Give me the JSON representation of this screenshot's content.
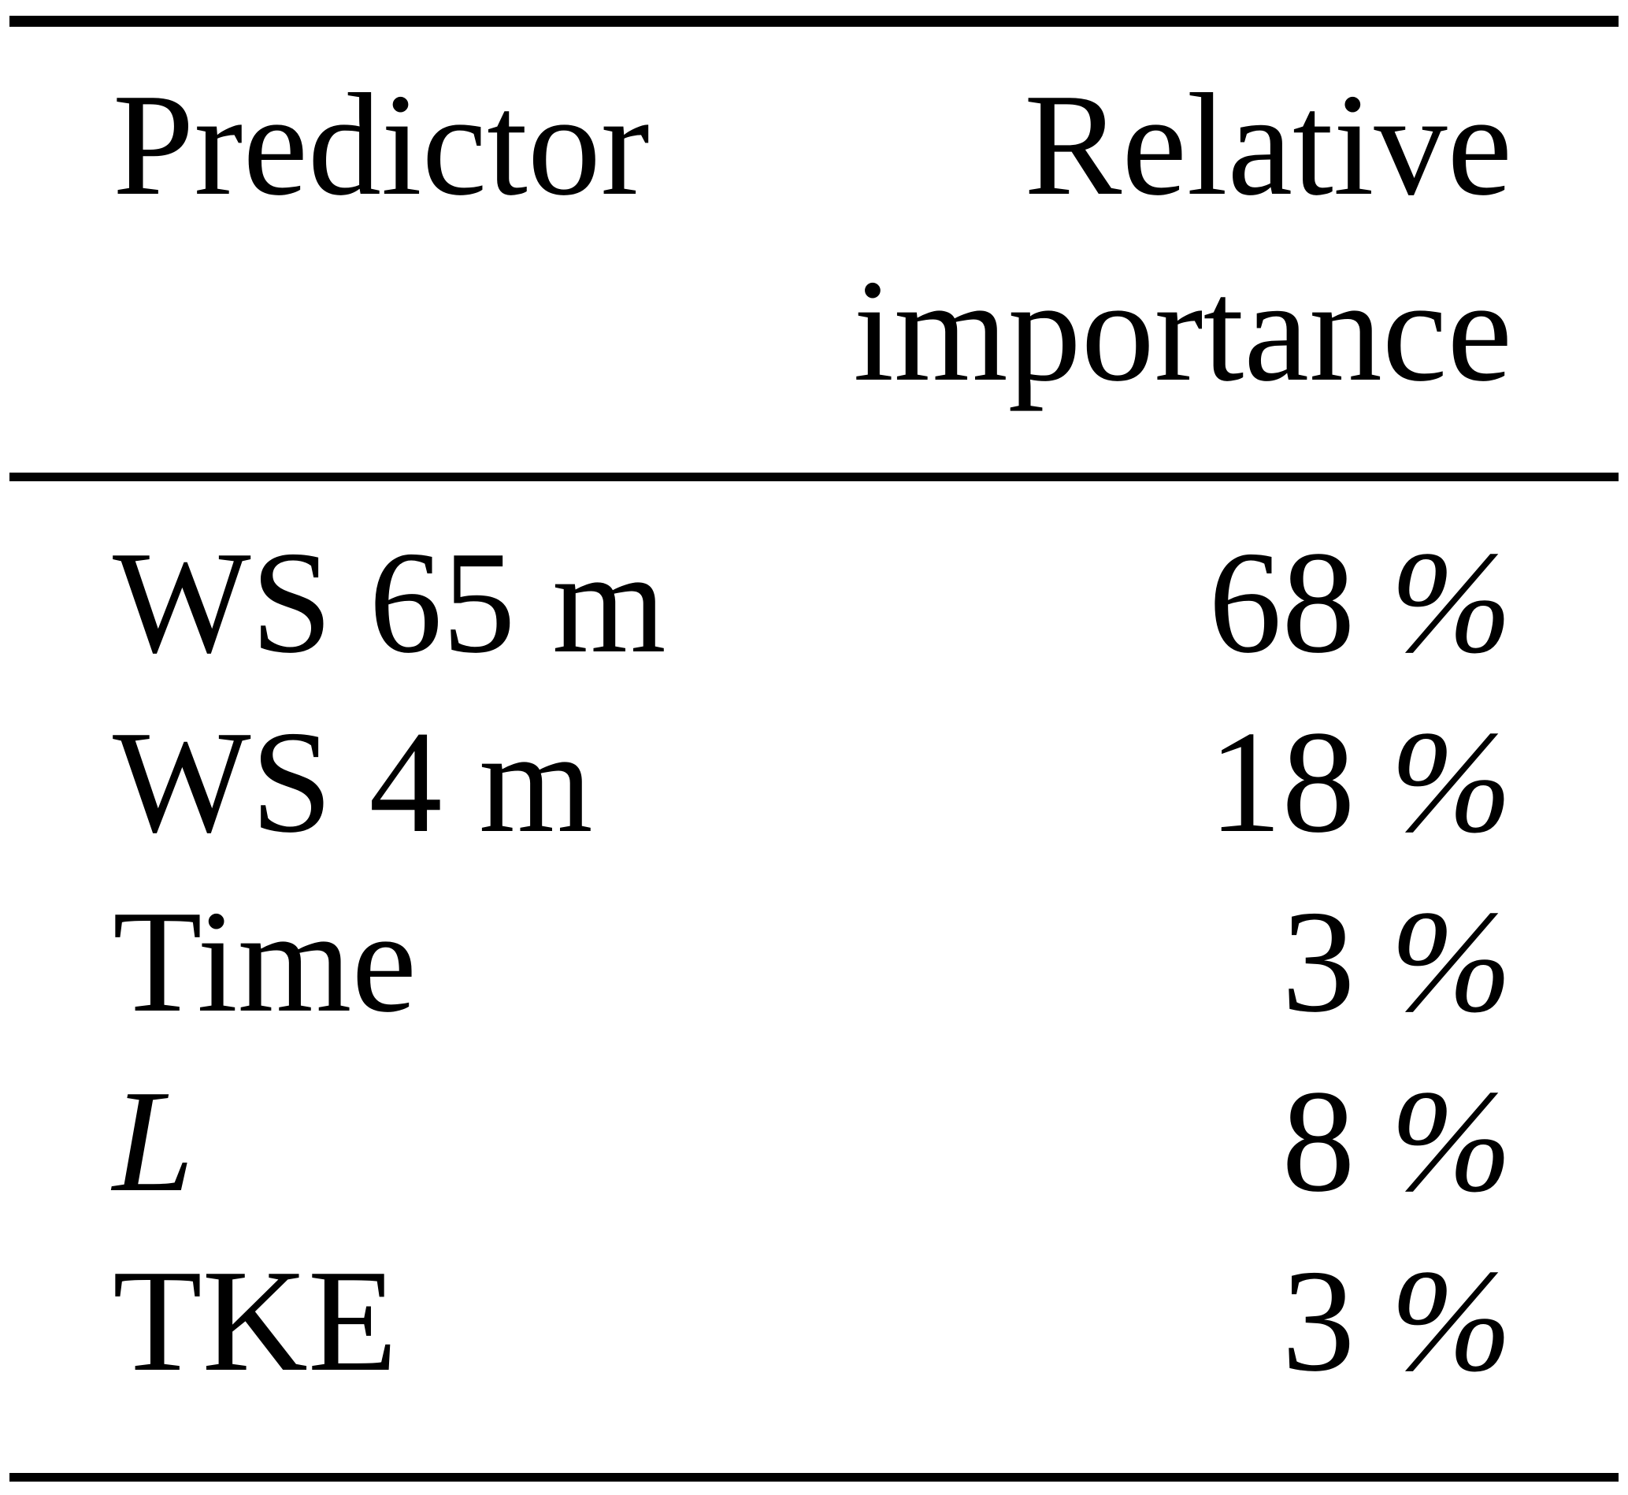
{
  "table": {
    "columns": [
      {
        "label": "Predictor"
      },
      {
        "label": "Relative importance"
      }
    ],
    "rows": [
      {
        "predictor": "WS 65 m",
        "value": "68",
        "unit": "%"
      },
      {
        "predictor": "WS 4 m",
        "value": "18",
        "unit": "%"
      },
      {
        "predictor": "Time",
        "value": "3",
        "unit": "%"
      },
      {
        "predictor": "L",
        "value": "8",
        "unit": "%"
      },
      {
        "predictor": "TKE",
        "value": "3",
        "unit": "%"
      }
    ],
    "colors": {
      "text": "#000000",
      "background": "#ffffff",
      "rule": "#000000"
    }
  },
  "chart_data": {
    "type": "table",
    "columns": [
      "Predictor",
      "Relative importance"
    ],
    "rows": [
      [
        "WS 65 m",
        "68 %"
      ],
      [
        "WS 4 m",
        "18 %"
      ],
      [
        "Time",
        "3 %"
      ],
      [
        "L",
        "8 %"
      ],
      [
        "TKE",
        "3 %"
      ]
    ],
    "values_percent": {
      "WS 65 m": 68,
      "WS 4 m": 18,
      "Time": 3,
      "L": 8,
      "TKE": 3
    }
  }
}
